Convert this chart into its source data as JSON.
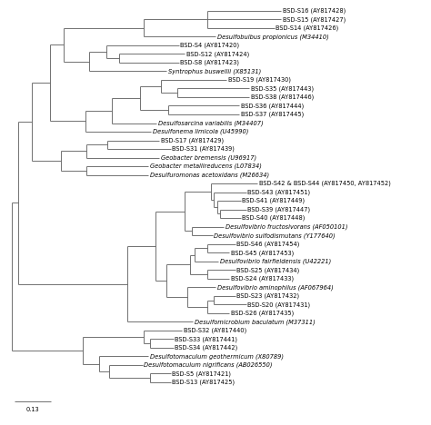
{
  "scale_bar_label": "0.13",
  "background_color": "#ffffff",
  "line_color": "#666666",
  "font_size": 4.8,
  "italic_taxa": [
    "Desulfobulbus propionicus",
    "Syntrophus buswellii",
    "Desulfosarcina variabilis",
    "Desulfonema limicola",
    "Geobacter bremensis",
    "Geobacter metallireducens",
    "Desulfuromonas acetoxidans",
    "Desulfovibrio fructosivorans",
    "Desulfovibrio sulfodismutans",
    "Desulfovibrio fairfieldensis",
    "Desulfovibrio aminophilus",
    "Desulfomicrobium baculatum",
    "Desulfotomaculum geothermicum",
    "Desulfotomaculum nigrificans"
  ],
  "leaves": [
    {
      "label": "BSD-S16 (AY817428)",
      "row": 1
    },
    {
      "label": "BSD-S15 (AY817427)",
      "row": 2
    },
    {
      "label": "BSD-S14 (AY817426)",
      "row": 3
    },
    {
      "label": "Desulfobulbus propionicus (M34410)",
      "row": 4
    },
    {
      "label": "BSD-S4 (AY817420)",
      "row": 5
    },
    {
      "label": "BSD-S12 (AY817424)",
      "row": 6
    },
    {
      "label": "BSD-S8 (AY817423)",
      "row": 7
    },
    {
      "label": "Syntrophus buswellii (X85131)",
      "row": 8
    },
    {
      "label": "BSD-S19 (AY817430)",
      "row": 9
    },
    {
      "label": "BSD-S35 (AY817443)",
      "row": 10
    },
    {
      "label": "BSD-S38 (AY817446)",
      "row": 11
    },
    {
      "label": "BSD-S36 (AY817444)",
      "row": 12
    },
    {
      "label": "BSD-S37 (AY817445)",
      "row": 13
    },
    {
      "label": "Desulfosarcina variabilis (M34407)",
      "row": 14
    },
    {
      "label": "Desulfonema limicola (U45990)",
      "row": 15
    },
    {
      "label": "BSD-S17 (AY817429)",
      "row": 16
    },
    {
      "label": "BSD-S31 (AY817439)",
      "row": 17
    },
    {
      "label": "Geobacter bremensis (U96917)",
      "row": 18
    },
    {
      "label": "Geobacter metallireducens (L07834)",
      "row": 19
    },
    {
      "label": "Desulfuromonas acetoxidans (M26634)",
      "row": 20
    },
    {
      "label": "BSD-S42 & BSD-S44 (AY817450, AY817452)",
      "row": 21
    },
    {
      "label": "BSD-S43 (AY817451)",
      "row": 22
    },
    {
      "label": "BSD-S41 (AY817449)",
      "row": 23
    },
    {
      "label": "BSD-S39 (AY817447)",
      "row": 24
    },
    {
      "label": "BSD-S40 (AY817448)",
      "row": 25
    },
    {
      "label": "Desulfovibrio fructosivorans (AF050101)",
      "row": 26
    },
    {
      "label": "Desulfovibrio sulfodismutans (Y177640)",
      "row": 27
    },
    {
      "label": "BSD-S46 (AY817454)",
      "row": 28
    },
    {
      "label": "BSD-S45 (AY817453)",
      "row": 29
    },
    {
      "label": "Desulfovibrio fairfieldensis (U42221)",
      "row": 30
    },
    {
      "label": "BSD-S25 (AY817434)",
      "row": 31
    },
    {
      "label": "BSD-S24 (AY817433)",
      "row": 32
    },
    {
      "label": "Desulfovibrio aminophilus (AF067964)",
      "row": 33
    },
    {
      "label": "BSD-S23 (AY817432)",
      "row": 34
    },
    {
      "label": "BSD-S20 (AY817431)",
      "row": 35
    },
    {
      "label": "BSD-S26 (AY817435)",
      "row": 36
    },
    {
      "label": "Desulfomicrobium baculatum (M37311)",
      "row": 37
    },
    {
      "label": "BSD-S32 (AY817440)",
      "row": 38
    },
    {
      "label": "BSD-S33 (AY817441)",
      "row": 39
    },
    {
      "label": "BSD-S34 (AY817442)",
      "row": 40
    },
    {
      "label": "Desulfotomaculum geothermicum (X80789)",
      "row": 41
    },
    {
      "label": "Desulfotomaculum nigrificans (AB026550)",
      "row": 42
    },
    {
      "label": "BSD-S5 (AY817421)",
      "row": 43
    },
    {
      "label": "BSD-S13 (AY817425)",
      "row": 44
    }
  ]
}
